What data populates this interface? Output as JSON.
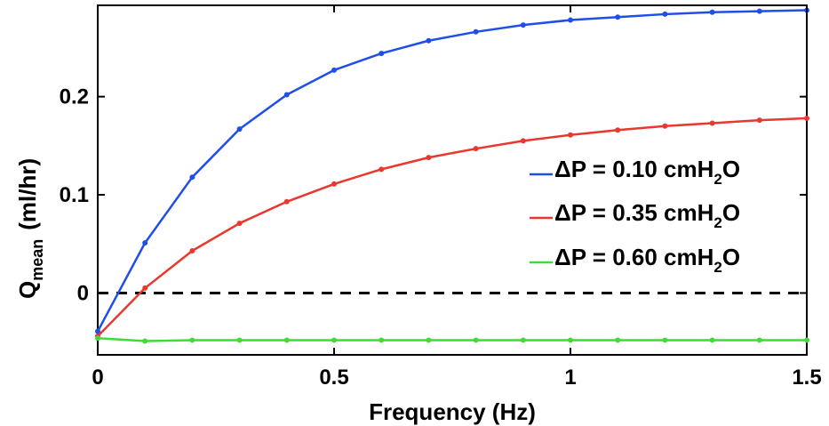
{
  "chart_data": {
    "type": "line",
    "xlabel": "Frequency (Hz)",
    "ylabel_main": "Q",
    "ylabel_sub": "mean",
    "ylabel_unit": "(ml/hr)",
    "xlim": [
      0,
      1.5
    ],
    "ylim": [
      -0.063,
      0.293
    ],
    "xticks": [
      0,
      0.5,
      1,
      1.5
    ],
    "xtick_labels": [
      "0",
      "0.5",
      "1",
      "1.5"
    ],
    "yticks": [
      0,
      0.1,
      0.2
    ],
    "ytick_labels": [
      "0",
      "0.1",
      "0.2"
    ],
    "grid": false,
    "legend_position": "center-right",
    "zero_line": {
      "y": 0,
      "style": "dashed",
      "color": "#000000"
    },
    "x": [
      0,
      0.1,
      0.2,
      0.3,
      0.4,
      0.5,
      0.6,
      0.7,
      0.8,
      0.9,
      1.0,
      1.1,
      1.2,
      1.3,
      1.4,
      1.5
    ],
    "series": [
      {
        "legend_prefix": "ΔP = 0.10 cmH",
        "legend_sub": "2",
        "legend_suffix": "O",
        "color": "#1f4fe8",
        "values": [
          -0.039,
          0.051,
          0.118,
          0.167,
          0.202,
          0.227,
          0.244,
          0.257,
          0.266,
          0.273,
          0.278,
          0.281,
          0.284,
          0.286,
          0.287,
          0.288
        ]
      },
      {
        "legend_prefix": "ΔP = 0.35 cmH",
        "legend_sub": "2",
        "legend_suffix": "O",
        "color": "#e8382f",
        "values": [
          -0.044,
          0.005,
          0.043,
          0.071,
          0.093,
          0.111,
          0.126,
          0.138,
          0.147,
          0.155,
          0.161,
          0.166,
          0.17,
          0.173,
          0.176,
          0.178
        ]
      },
      {
        "legend_prefix": "ΔP = 0.60 cmH",
        "legend_sub": "2",
        "legend_suffix": "O",
        "color": "#3ddc36",
        "values": [
          -0.046,
          -0.049,
          -0.048,
          -0.048,
          -0.048,
          -0.048,
          -0.048,
          -0.048,
          -0.048,
          -0.048,
          -0.048,
          -0.048,
          -0.048,
          -0.048,
          -0.048,
          -0.048
        ]
      }
    ]
  }
}
